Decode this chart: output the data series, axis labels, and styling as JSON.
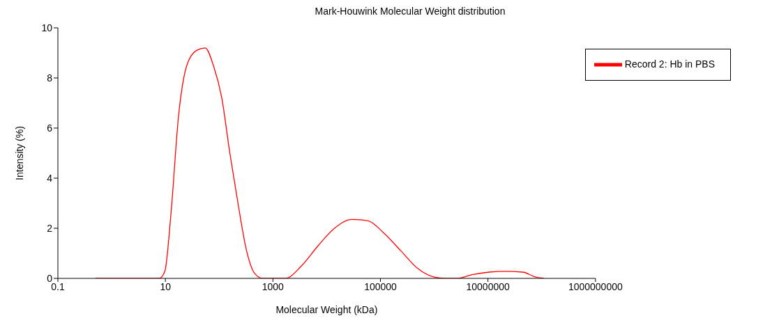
{
  "chart_data": {
    "type": "line",
    "title": "Mark-Houwink Molecular Weight distribution",
    "xlabel": "Molecular Weight (kDa)",
    "ylabel": "Intensity (%)",
    "log": "x",
    "xlim": [
      0.1,
      1000000000
    ],
    "xticks": [
      0.1,
      10,
      1000,
      100000,
      10000000,
      1000000000
    ],
    "ylim": [
      0,
      10
    ],
    "yticks": [
      0,
      2,
      4,
      6,
      8,
      10
    ],
    "grid": false,
    "legend": "top right",
    "marker": "none",
    "line_style": "solid",
    "x": [
      0.5,
      7.7,
      9.8,
      12.6,
      17.6,
      25,
      38,
      55,
      78,
      112,
      158,
      224,
      316,
      457,
      650,
      1700,
      3400,
      6900,
      14000,
      29000,
      58000,
      117000,
      240000,
      490000,
      1000000,
      1600000,
      2600000,
      5100000,
      10500000,
      21000000,
      44000000,
      78000000,
      110000000
    ],
    "series": [
      {
        "name": "Record 2: Hb in PBS",
        "color": "#ff0000",
        "values": [
          0,
          0,
          0.3,
          2.5,
          6.5,
          8.5,
          9.1,
          9.2,
          8.5,
          7.2,
          5,
          3,
          1.2,
          0.2,
          0,
          0,
          0.5,
          1.3,
          2,
          2.35,
          2.3,
          1.8,
          1.1,
          0.4,
          0.05,
          0,
          0,
          0.15,
          0.25,
          0.28,
          0.25,
          0.05,
          0
        ]
      }
    ]
  }
}
